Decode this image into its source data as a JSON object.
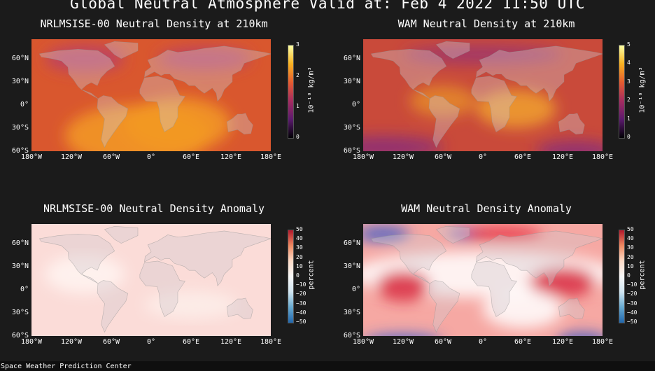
{
  "title": "Global Neutral Atmosphere Valid at: Feb 4 2022 11:50 UTC",
  "footer": "Space Weather Prediction Center",
  "lat_ticks": [
    "60°N",
    "30°N",
    "0°",
    "30°S",
    "60°S"
  ],
  "lon_ticks": [
    "180°W",
    "120°W",
    "60°W",
    "0°",
    "60°E",
    "120°E",
    "180°E"
  ],
  "panels": [
    {
      "title": "NRLMSISE-00 Neutral Density at 210km",
      "colorbar": {
        "label": "10⁻¹⁰ kg/m³",
        "ticks": [
          "3",
          "2",
          "1",
          "0"
        ],
        "colors": [
          "#fcffa4",
          "#f8b121",
          "#e55b30",
          "#a52c60",
          "#5b1a6e",
          "#000004"
        ]
      },
      "base_color": "#d9572e"
    },
    {
      "title": "WAM Neutral Density at 210km",
      "colorbar": {
        "label": "10⁻¹⁰ kg/m³",
        "ticks": [
          "5",
          "4",
          "3",
          "2",
          "1",
          "0"
        ],
        "colors": [
          "#fcffa4",
          "#f8b121",
          "#e55b30",
          "#a52c60",
          "#5b1a6e",
          "#000004"
        ]
      },
      "base_color": "#c94a3a"
    },
    {
      "title": "NRLMSISE-00 Neutral Density Anomaly",
      "colorbar": {
        "label": "percent",
        "ticks": [
          "50",
          "40",
          "30",
          "20",
          "10",
          "0",
          "−10",
          "−20",
          "−30",
          "−40",
          "−50"
        ],
        "colors": [
          "#b2182b",
          "#ef8a62",
          "#fddbc7",
          "#f7f7f7",
          "#d1e5f0",
          "#67a9cf",
          "#2166ac"
        ]
      },
      "base_color": "#fbdcd8"
    },
    {
      "title": "WAM Neutral Density Anomaly",
      "colorbar": {
        "label": "percent",
        "ticks": [
          "50",
          "40",
          "30",
          "20",
          "10",
          "0",
          "−10",
          "−20",
          "−30",
          "−40",
          "−50"
        ],
        "colors": [
          "#b2182b",
          "#ef8a62",
          "#fddbc7",
          "#f7f7f7",
          "#d1e5f0",
          "#67a9cf",
          "#2166ac"
        ]
      },
      "base_color": "#f6a8a3"
    }
  ]
}
